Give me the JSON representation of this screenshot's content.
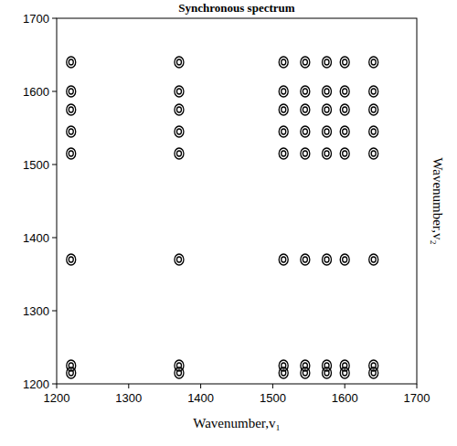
{
  "chart_data": {
    "type": "contour",
    "title": "Synchronous spectrum",
    "x_label": "Wavenumber,v₁",
    "y_label": "Wavenumber,v₂",
    "x": [
      1220,
      1370,
      1515,
      1545,
      1575,
      1600,
      1640
    ],
    "y": [
      1215,
      1225,
      1370,
      1515,
      1545,
      1575,
      1600,
      1640
    ],
    "xlim": [
      1200,
      1700
    ],
    "ylim": [
      1200,
      1700
    ],
    "xticks": [
      1200,
      1300,
      1400,
      1500,
      1600,
      1700
    ],
    "yticks": [
      1200,
      1300,
      1400,
      1500,
      1600,
      1700
    ],
    "color": "#000000",
    "grid": false
  }
}
